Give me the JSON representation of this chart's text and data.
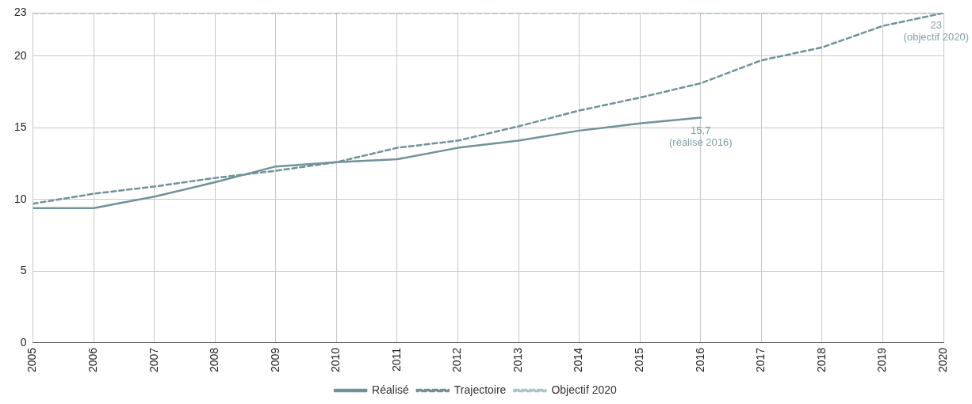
{
  "chart_data": {
    "type": "line",
    "x": [
      2005,
      2006,
      2007,
      2008,
      2009,
      2010,
      2011,
      2012,
      2013,
      2014,
      2015,
      2016,
      2017,
      2018,
      2019,
      2020
    ],
    "series": [
      {
        "name": "Réalisé",
        "color": "#6f929b",
        "line_style": "solid",
        "values": [
          9.4,
          9.4,
          10.2,
          11.2,
          12.3,
          12.6,
          12.8,
          13.6,
          14.1,
          14.8,
          15.3,
          15.7,
          null,
          null,
          null,
          null
        ]
      },
      {
        "name": "Trajectoire",
        "color": "#6f929b",
        "line_style": "dashed",
        "values": [
          9.7,
          10.4,
          10.9,
          11.5,
          12.0,
          12.6,
          13.6,
          14.1,
          15.1,
          16.2,
          17.1,
          18.1,
          19.7,
          20.6,
          22.1,
          23
        ]
      },
      {
        "name": "Objectif 2020",
        "color": "#a9c4cc",
        "line_style": "dashed",
        "values": [
          23,
          23,
          23,
          23,
          23,
          23,
          23,
          23,
          23,
          23,
          23,
          23,
          23,
          23,
          23,
          23
        ]
      }
    ],
    "xlim": [
      2005,
      2020
    ],
    "xticks": [
      2005,
      2006,
      2007,
      2008,
      2009,
      2010,
      2011,
      2012,
      2013,
      2014,
      2015,
      2016,
      2017,
      2018,
      2019,
      2020
    ],
    "ylim": [
      0,
      23
    ],
    "yticks": [
      0,
      5,
      10,
      15,
      20,
      23
    ],
    "grid": true,
    "legend": "bottom",
    "marker": "none",
    "annotations": [
      {
        "text": "15,7\n(réalisé 2016)",
        "x": 2016,
        "y": 15.7
      },
      {
        "text": "23\n(objectif 2020)",
        "x": 2020,
        "y": 23
      }
    ]
  }
}
